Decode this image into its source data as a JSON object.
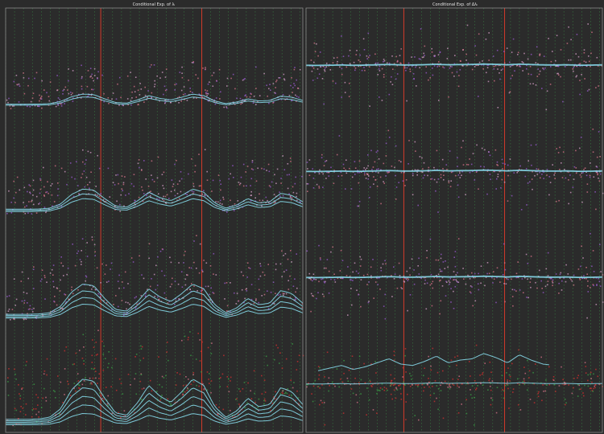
{
  "chart_data": [
    {
      "type": "scatter",
      "title": "Conditional Exp. of λᵢ",
      "band_count": 4,
      "x_range": [
        0,
        100
      ],
      "red_lines_x": [
        32,
        66
      ],
      "green_grid_step": 3,
      "points_per_band": 340,
      "colors": {
        "background": "#2b2b2b",
        "frame": "#8a8a8a",
        "green_grid": "#3fa34d",
        "red_line": "#d23a2a",
        "fit_curve": "#86d9ea",
        "points": [
          "#d6a0c8",
          "#d8748a",
          "#9a5bd0",
          "#d22f2f",
          "#3aa046"
        ]
      },
      "curve_profile": [
        0.05,
        0.05,
        0.05,
        0.06,
        0.1,
        0.3,
        0.75,
        1.0,
        0.95,
        0.55,
        0.2,
        0.15,
        0.45,
        0.85,
        0.6,
        0.45,
        0.7,
        1.0,
        0.85,
        0.35,
        0.1,
        0.25,
        0.55,
        0.35,
        0.4,
        0.8,
        0.7,
        0.4
      ]
    },
    {
      "type": "scatter",
      "title": "Conditional Exp. of Δλᵢ",
      "band_count": 4,
      "x_range": [
        0,
        100
      ],
      "red_lines_x": [
        33,
        67
      ],
      "green_grid_step": 3,
      "points_per_band": 360,
      "colors": {
        "background": "#2b2b2b",
        "frame": "#8a8a8a",
        "green_grid": "#3fa34d",
        "red_line": "#d23a2a",
        "fit_curve": "#86d9ea",
        "points": [
          "#d6a0c8",
          "#d8748a",
          "#9a5bd0",
          "#d22f2f",
          "#3aa046"
        ]
      },
      "curve_profile": [
        0.35,
        0.3,
        0.4,
        0.5,
        0.35,
        0.45,
        0.6,
        0.75,
        0.55,
        0.5,
        0.65,
        0.85,
        0.6,
        0.7,
        0.75,
        0.95,
        0.8,
        0.6,
        0.9,
        0.7,
        0.55,
        0.5,
        0.6,
        0.4,
        0.45,
        0.55
      ]
    }
  ]
}
